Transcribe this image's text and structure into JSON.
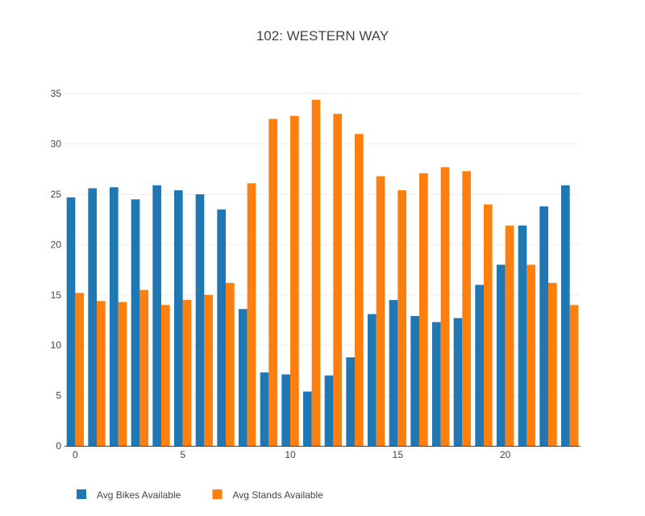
{
  "chart_data": {
    "type": "bar",
    "title": "102: WESTERN WAY",
    "xlabel": "",
    "ylabel": "",
    "x": [
      0,
      1,
      2,
      3,
      4,
      5,
      6,
      7,
      8,
      9,
      10,
      11,
      12,
      13,
      14,
      15,
      16,
      17,
      18,
      19,
      20,
      21,
      22,
      23
    ],
    "xticks": [
      0,
      5,
      10,
      15,
      20
    ],
    "yticks": [
      0,
      5,
      10,
      15,
      20,
      25,
      30,
      35
    ],
    "xlim": [
      -0.5,
      23.5
    ],
    "ylim": [
      0,
      35.5
    ],
    "grid": true,
    "legend_position": "bottom-left",
    "series": [
      {
        "name": "Avg Bikes Available",
        "color": "#1f77b4",
        "values": [
          24.7,
          25.6,
          25.7,
          24.5,
          25.9,
          25.4,
          25.0,
          23.5,
          13.6,
          7.3,
          7.1,
          5.4,
          7.0,
          8.8,
          13.1,
          14.5,
          12.9,
          12.3,
          12.7,
          16.0,
          18.0,
          21.9,
          23.8,
          25.9
        ]
      },
      {
        "name": "Avg Stands Available",
        "color": "#ff7f0e",
        "values": [
          15.2,
          14.4,
          14.3,
          15.5,
          14.0,
          14.5,
          15.0,
          16.2,
          26.1,
          32.5,
          32.8,
          34.4,
          33.0,
          31.0,
          26.8,
          25.4,
          27.1,
          27.7,
          27.3,
          24.0,
          21.9,
          18.0,
          16.2,
          14.0
        ]
      }
    ]
  }
}
